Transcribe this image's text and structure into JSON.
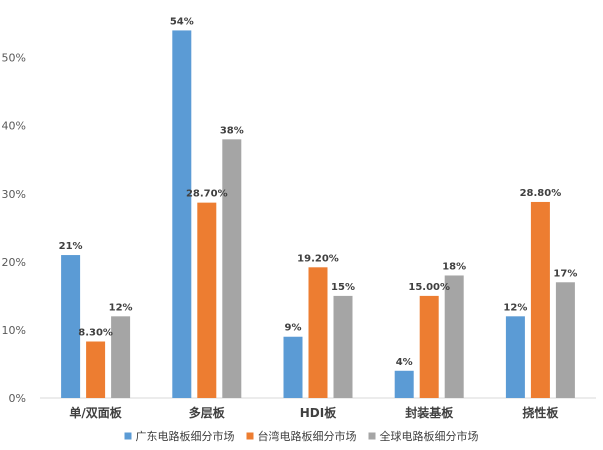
{
  "chart_data": {
    "type": "bar",
    "categories": [
      "单/双面板",
      "多层板",
      "HDI板",
      "封装基板",
      "挠性板"
    ],
    "series": [
      {
        "name": "广东电路板细分市场",
        "color": "#5b9bd5",
        "values": [
          21,
          54,
          9,
          4,
          12
        ],
        "labels": [
          "21%",
          "54%",
          "9%",
          "4%",
          "12%"
        ]
      },
      {
        "name": "台湾电路板细分市场",
        "color": "#ed7d31",
        "values": [
          8.3,
          28.7,
          19.2,
          15.0,
          28.8
        ],
        "labels": [
          "8.30%",
          "28.70%",
          "19.20%",
          "15.00%",
          "28.80%"
        ]
      },
      {
        "name": "全球电路板细分市场",
        "color": "#a5a5a5",
        "values": [
          12,
          38,
          15,
          18,
          17
        ],
        "labels": [
          "12%",
          "38%",
          "15%",
          "18%",
          "17%"
        ]
      }
    ],
    "yticks": [
      0,
      10,
      20,
      30,
      40,
      50
    ],
    "ytick_labels": [
      "0%",
      "10%",
      "20%",
      "30%",
      "40%",
      "50%"
    ],
    "ylim": [
      0,
      57
    ],
    "grid": false,
    "legend": "bottom",
    "title": "",
    "xlabel": "",
    "ylabel": ""
  }
}
